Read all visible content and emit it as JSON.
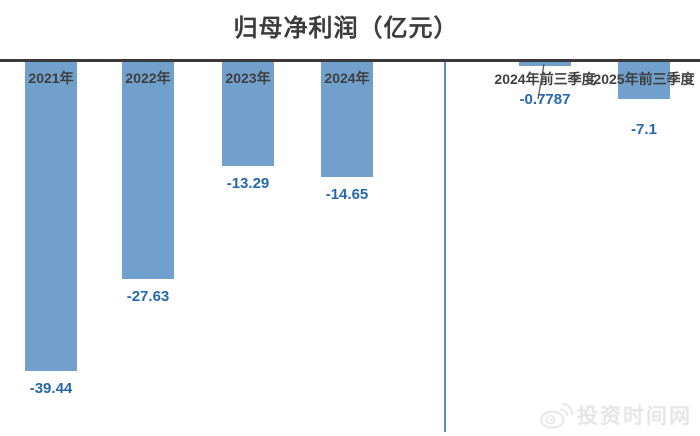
{
  "title": "归母净利润（亿元）",
  "chart_data": {
    "type": "bar",
    "title": "归母净利润（亿元）",
    "unit": "亿元",
    "orientation": "vertical",
    "baseline": 0,
    "grid": false,
    "legend": false,
    "bar_color": "#72a0cc",
    "value_label_color": "#2568ae",
    "category_label_color": "#3f3f3f",
    "axis_color": "#3a3a3a",
    "divider_color": "#6487d8",
    "groups": [
      {
        "name": "annual",
        "categories": [
          "2021年",
          "2022年",
          "2023年",
          "2024年"
        ],
        "values": [
          -39.44,
          -27.63,
          -13.29,
          -14.65
        ],
        "value_labels": [
          "-39.44",
          "-27.63",
          "-13.29",
          "-14.65"
        ]
      },
      {
        "name": "first-three-quarters",
        "categories": [
          "2024年前三季度",
          "2025年前三季度"
        ],
        "values": [
          -0.7787,
          -7.1
        ],
        "value_labels": [
          "-0.7787",
          "-7.1"
        ]
      }
    ]
  },
  "watermark": {
    "text": "投资时间网",
    "icon": "weibo-icon"
  }
}
